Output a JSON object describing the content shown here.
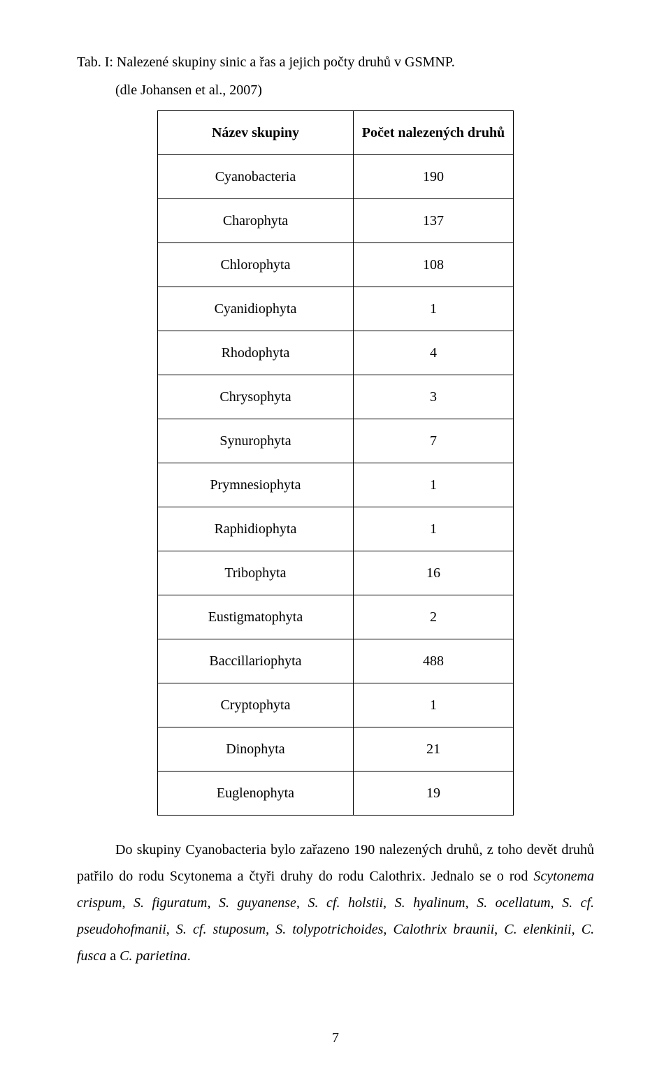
{
  "title": "Tab. I: Nalezené skupiny sinic a řas a jejich počty druhů v GSMNP.",
  "subtitle": "(dle Johansen et al., 2007)",
  "table": {
    "header": {
      "name": "Název skupiny",
      "value": "Počet nalezených druhů"
    },
    "rows": [
      {
        "name": "Cyanobacteria",
        "value": "190"
      },
      {
        "name": "Charophyta",
        "value": "137"
      },
      {
        "name": "Chlorophyta",
        "value": "108"
      },
      {
        "name": "Cyanidiophyta",
        "value": "1"
      },
      {
        "name": "Rhodophyta",
        "value": "4"
      },
      {
        "name": "Chrysophyta",
        "value": "3"
      },
      {
        "name": "Synurophyta",
        "value": "7"
      },
      {
        "name": "Prymnesiophyta",
        "value": "1"
      },
      {
        "name": "Raphidiophyta",
        "value": "1"
      },
      {
        "name": "Tribophyta",
        "value": "16"
      },
      {
        "name": "Eustigmatophyta",
        "value": "2"
      },
      {
        "name": "Baccillariophyta",
        "value": "488"
      },
      {
        "name": "Cryptophyta",
        "value": "1"
      },
      {
        "name": "Dinophyta",
        "value": "21"
      },
      {
        "name": "Euglenophyta",
        "value": "19"
      }
    ]
  },
  "body": {
    "p1_a": "Do skupiny Cyanobacteria bylo zařazeno 190 nalezených druhů, z toho devět druhů patřilo do rodu Scytonema a čtyři druhy do rodu Calothrix. Jednalo se o rod ",
    "p1_sp_scyt": "Scytonema crispum",
    "p1_b": ", ",
    "p1_sp_fig": "S. figuratum",
    "p1_c": ", ",
    "p1_sp_guy": "S. guyanense",
    "p1_d": ", ",
    "p1_sp_hol": "S. cf. holstii",
    "p1_e": ", ",
    "p1_sp_hya": "S. hyalinum",
    "p1_f": ", ",
    "p1_sp_oce": "S. ocellatum",
    "p1_g": ", ",
    "p1_sp_pse": "S. cf. pseudohofmanii",
    "p1_h": ", ",
    "p1_sp_stu": "S. cf. stuposum",
    "p1_i": ", ",
    "p1_sp_tol": "S. tolypotrichoides",
    "p1_j": ", ",
    "p1_sp_cbr": "Calothrix braunii",
    "p1_k": ", ",
    "p1_sp_cel": "C. elenkinii",
    "p1_l": ", ",
    "p1_sp_cfu": "C. fusca",
    "p1_m": " a ",
    "p1_sp_cpa": "C. parietina",
    "p1_n": "."
  },
  "page_number": "7"
}
